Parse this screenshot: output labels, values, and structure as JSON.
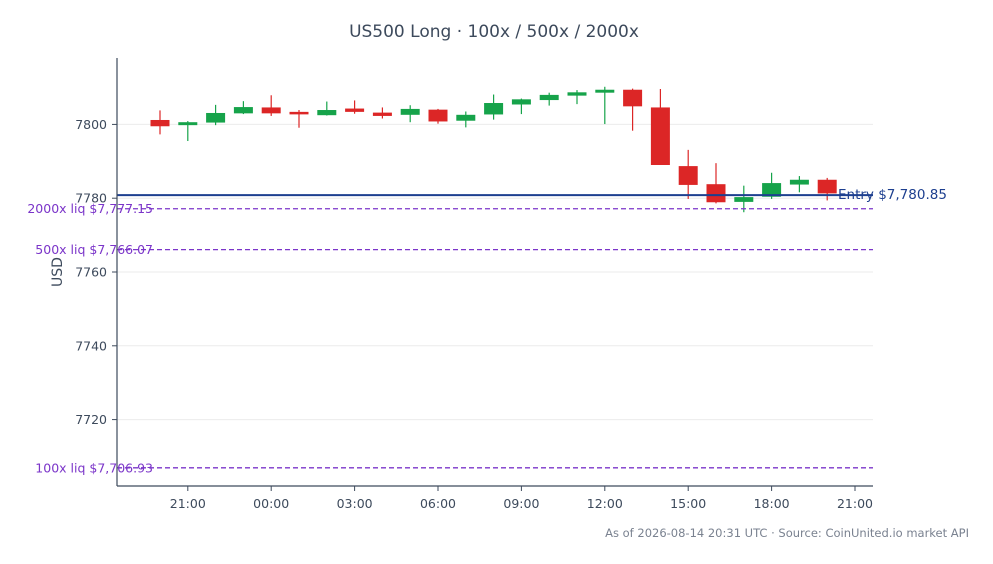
{
  "chart_data": {
    "type": "candlestick",
    "title": "US500 Long · 100x / 500x / 2000x",
    "ylabel": "USD",
    "xlabel": "",
    "ylim": [
      7702,
      7818
    ],
    "yticks": [
      7720,
      7740,
      7760,
      7780,
      7800
    ],
    "x_ticks": [
      {
        "label": "21:00",
        "index": 1
      },
      {
        "label": "00:00",
        "index": 4
      },
      {
        "label": "03:00",
        "index": 7
      },
      {
        "label": "06:00",
        "index": 10
      },
      {
        "label": "09:00",
        "index": 13
      },
      {
        "label": "12:00",
        "index": 16
      },
      {
        "label": "15:00",
        "index": 19
      },
      {
        "label": "18:00",
        "index": 22
      },
      {
        "label": "21:00",
        "index": 25
      }
    ],
    "grid": true,
    "candles": [
      {
        "open": 7801.2,
        "high": 7803.8,
        "low": 7797.3,
        "close": 7799.5
      },
      {
        "open": 7799.8,
        "high": 7800.9,
        "low": 7795.5,
        "close": 7800.6
      },
      {
        "open": 7800.5,
        "high": 7805.3,
        "low": 7799.8,
        "close": 7803.1
      },
      {
        "open": 7803.0,
        "high": 7806.3,
        "low": 7802.8,
        "close": 7804.7
      },
      {
        "open": 7804.6,
        "high": 7807.9,
        "low": 7802.3,
        "close": 7803.0
      },
      {
        "open": 7803.4,
        "high": 7803.9,
        "low": 7799.1,
        "close": 7802.8
      },
      {
        "open": 7802.5,
        "high": 7806.2,
        "low": 7802.4,
        "close": 7803.9
      },
      {
        "open": 7804.3,
        "high": 7806.5,
        "low": 7802.9,
        "close": 7803.4
      },
      {
        "open": 7803.2,
        "high": 7804.6,
        "low": 7801.6,
        "close": 7802.3
      },
      {
        "open": 7802.6,
        "high": 7805.2,
        "low": 7800.6,
        "close": 7804.2
      },
      {
        "open": 7804.0,
        "high": 7804.2,
        "low": 7800.2,
        "close": 7800.8
      },
      {
        "open": 7801.0,
        "high": 7803.5,
        "low": 7799.2,
        "close": 7802.6
      },
      {
        "open": 7802.7,
        "high": 7808.1,
        "low": 7801.3,
        "close": 7805.8
      },
      {
        "open": 7805.4,
        "high": 7807.0,
        "low": 7802.8,
        "close": 7806.8
      },
      {
        "open": 7806.6,
        "high": 7808.6,
        "low": 7805.1,
        "close": 7808.0
      },
      {
        "open": 7807.8,
        "high": 7809.3,
        "low": 7805.5,
        "close": 7808.7
      },
      {
        "open": 7808.6,
        "high": 7810.2,
        "low": 7800.1,
        "close": 7809.4
      },
      {
        "open": 7809.4,
        "high": 7809.7,
        "low": 7798.3,
        "close": 7804.9
      },
      {
        "open": 7804.6,
        "high": 7809.6,
        "low": 7789.0,
        "close": 7789.0
      },
      {
        "open": 7788.7,
        "high": 7793.1,
        "low": 7779.8,
        "close": 7783.6
      },
      {
        "open": 7783.8,
        "high": 7789.5,
        "low": 7778.6,
        "close": 7778.9
      },
      {
        "open": 7779.0,
        "high": 7783.4,
        "low": 7776.2,
        "close": 7780.3
      },
      {
        "open": 7780.4,
        "high": 7786.9,
        "low": 7779.8,
        "close": 7784.1
      },
      {
        "open": 7783.7,
        "high": 7786.0,
        "low": 7781.6,
        "close": 7785.0
      },
      {
        "open": 7785.0,
        "high": 7785.5,
        "low": 7779.4,
        "close": 7781.3
      }
    ],
    "lines": [
      {
        "label": "Entry $7,780.85",
        "value": 7780.85,
        "style": "solid",
        "color": "#1d3f8f"
      },
      {
        "label": "2000x liq $7,777.15",
        "value": 7777.15,
        "style": "dashed",
        "color": "#7b35c9"
      },
      {
        "label": "500x liq $7,766.07",
        "value": 7766.07,
        "style": "dashed",
        "color": "#7b35c9"
      },
      {
        "label": "100x liq $7,706.93",
        "value": 7706.93,
        "style": "dashed",
        "color": "#7b35c9"
      }
    ],
    "colors": {
      "up": "#16a34a",
      "down": "#dc2626",
      "axis": "#3d4a5c",
      "grid": "#ebebeb"
    },
    "footer": "As of 2026-08-14 20:31 UTC · Source: CoinUnited.io market API"
  }
}
